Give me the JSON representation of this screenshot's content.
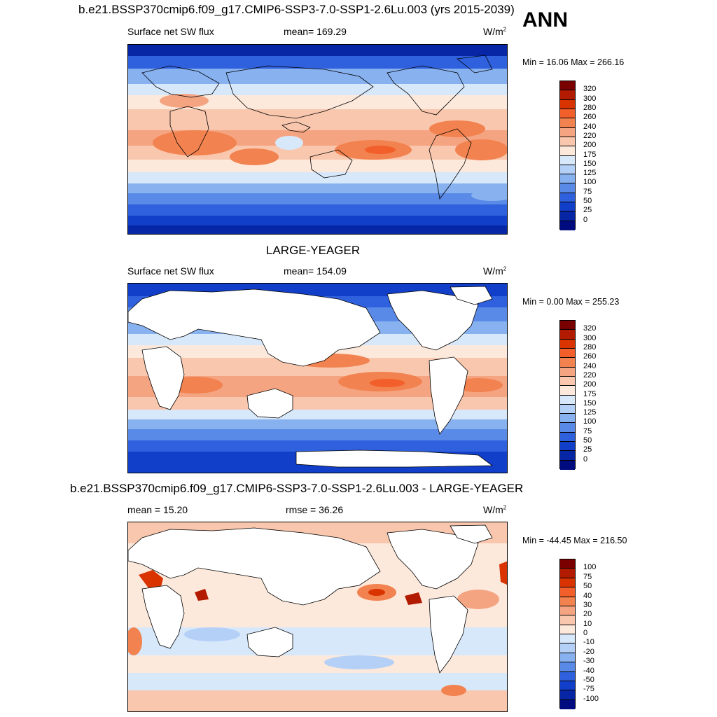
{
  "season": "ANN",
  "panels": [
    {
      "title": "b.e21.BSSP370cmip6.f09_g17.CMIP6-SSP3-7.0-SSP1-2.6Lu.003 (yrs 2015-2039)",
      "left_label": "Surface net SW flux",
      "center_label": "mean= 169.29",
      "units": "W/m",
      "units_sup": "2",
      "minmax": "Min =  16.06 Max = 266.16"
    },
    {
      "title": "LARGE-YEAGER",
      "left_label": "Surface net SW flux",
      "center_label": "mean= 154.09",
      "units": "W/m",
      "units_sup": "2",
      "minmax": "Min =   0.00 Max = 255.23"
    },
    {
      "title": "b.e21.BSSP370cmip6.f09_g17.CMIP6-SSP3-7.0-SSP1-2.6Lu.003 - LARGE-YEAGER",
      "left_label": "mean =  15.20",
      "center_label": "rmse =  36.26",
      "units": "W/m",
      "units_sup": "2",
      "minmax": "Min = -44.45 Max = 216.50"
    }
  ],
  "colorbars": {
    "absolute": {
      "labels": [
        "320",
        "300",
        "280",
        "260",
        "240",
        "220",
        "200",
        "175",
        "150",
        "125",
        "100",
        "75",
        "50",
        "25",
        "0"
      ],
      "colors": [
        "#7a0000",
        "#b31b00",
        "#d93300",
        "#f25f2a",
        "#f2824f",
        "#f5a482",
        "#f9c7ad",
        "#fde9dc",
        "#d7e8fb",
        "#b4d0f6",
        "#88b1f0",
        "#5a8ae7",
        "#2f60dd",
        "#123fc9",
        "#0726a6",
        "#000b7f"
      ]
    },
    "difference": {
      "labels": [
        "100",
        "75",
        "50",
        "40",
        "30",
        "20",
        "10",
        "0",
        "-10",
        "-20",
        "-30",
        "-40",
        "-50",
        "-75",
        "-100"
      ],
      "colors": [
        "#7a0000",
        "#b31b00",
        "#d93300",
        "#f25f2a",
        "#f2824f",
        "#f5a482",
        "#f9c7ad",
        "#fde9dc",
        "#d7e8fb",
        "#b4d0f6",
        "#88b1f0",
        "#5a8ae7",
        "#2f60dd",
        "#123fc9",
        "#0726a6",
        "#000b7f"
      ]
    }
  }
}
